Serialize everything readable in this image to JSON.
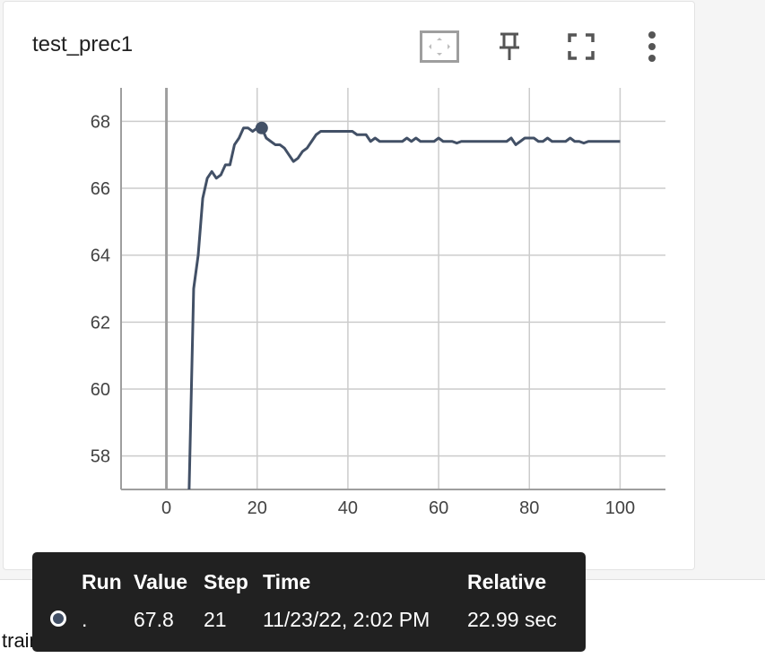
{
  "card": {
    "title": "test_prec1",
    "toolbar": {
      "fit_domain": "fit-to-data-icon",
      "pin": "pin-icon",
      "fullscreen": "fullscreen-icon",
      "more": "more-vert-icon"
    }
  },
  "colors": {
    "series": "#425066",
    "grid": "#cccccc",
    "axis": "#9e9e9e",
    "tooltip_bg": "#212121"
  },
  "chart_data": {
    "type": "line",
    "title": "test_prec1",
    "xlabel": "",
    "ylabel": "",
    "xlim": [
      -10,
      110
    ],
    "ylim": [
      57,
      69
    ],
    "xticks": [
      0,
      20,
      40,
      60,
      80,
      100
    ],
    "yticks": [
      58,
      60,
      62,
      64,
      66,
      68
    ],
    "grid": true,
    "series": [
      {
        "x": [
          5,
          6,
          7,
          8,
          9,
          10,
          11,
          12,
          13,
          14,
          15,
          16,
          17,
          18,
          19,
          20,
          21,
          22,
          23,
          24,
          25,
          26,
          27,
          28,
          29,
          30,
          31,
          32,
          33,
          34,
          35,
          36,
          37,
          38,
          39,
          40,
          41,
          42,
          43,
          44,
          45,
          46,
          47,
          48,
          49,
          50,
          51,
          52,
          53,
          54,
          55,
          56,
          57,
          58,
          59,
          60,
          61,
          62,
          63,
          64,
          65,
          66,
          67,
          68,
          69,
          70,
          71,
          72,
          73,
          74,
          75,
          76,
          77,
          78,
          79,
          80,
          81,
          82,
          83,
          84,
          85,
          86,
          87,
          88,
          89,
          90,
          91,
          92,
          93,
          94,
          95,
          96,
          97,
          98,
          99,
          100
        ],
        "y": [
          57.0,
          63.0,
          64.0,
          65.7,
          66.3,
          66.5,
          66.3,
          66.4,
          66.7,
          66.7,
          67.3,
          67.5,
          67.8,
          67.8,
          67.7,
          67.8,
          67.8,
          67.5,
          67.4,
          67.3,
          67.3,
          67.2,
          67.0,
          66.8,
          66.9,
          67.1,
          67.2,
          67.4,
          67.6,
          67.7,
          67.7,
          67.7,
          67.7,
          67.7,
          67.7,
          67.7,
          67.7,
          67.6,
          67.6,
          67.6,
          67.4,
          67.5,
          67.4,
          67.4,
          67.4,
          67.4,
          67.4,
          67.4,
          67.5,
          67.4,
          67.5,
          67.4,
          67.4,
          67.4,
          67.4,
          67.5,
          67.4,
          67.4,
          67.4,
          67.35,
          67.4,
          67.4,
          67.4,
          67.4,
          67.4,
          67.4,
          67.4,
          67.4,
          67.4,
          67.4,
          67.4,
          67.5,
          67.3,
          67.4,
          67.5,
          67.5,
          67.5,
          67.4,
          67.4,
          67.5,
          67.4,
          67.4,
          67.4,
          67.4,
          67.5,
          67.4,
          67.4,
          67.35,
          67.4,
          67.4,
          67.4,
          67.4,
          67.4,
          67.4,
          67.4,
          67.4
        ]
      }
    ],
    "highlight": {
      "x": 21,
      "y": 67.8
    }
  },
  "tooltip": {
    "headers": {
      "run": "Run",
      "value": "Value",
      "step": "Step",
      "time": "Time",
      "relative": "Relative"
    },
    "row": {
      "run": ".",
      "value": "67.8",
      "step": "21",
      "time": "11/23/22, 2:02 PM",
      "relative": "22.99 sec"
    }
  },
  "next_section": {
    "label": "train_acc"
  }
}
